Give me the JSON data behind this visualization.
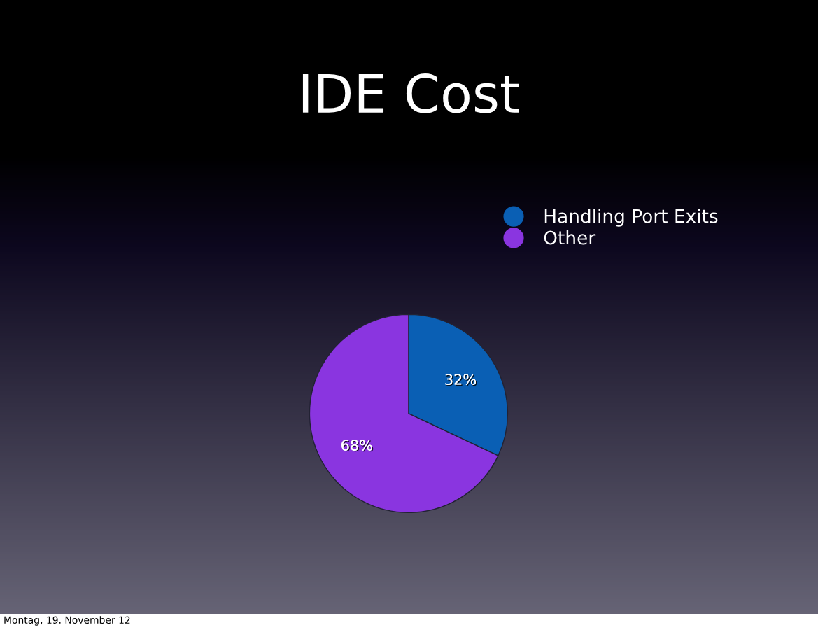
{
  "chart_data": {
    "type": "pie",
    "title": "IDE Cost",
    "categories": [
      "Handling Port Exits",
      "Other"
    ],
    "values": [
      32,
      68
    ],
    "colors": [
      "#0a5fb4",
      "#8a35e0"
    ],
    "value_labels": [
      "32%",
      "68%"
    ],
    "legend": "top right",
    "annotations": [
      "Montag, 19. November 12"
    ]
  }
}
